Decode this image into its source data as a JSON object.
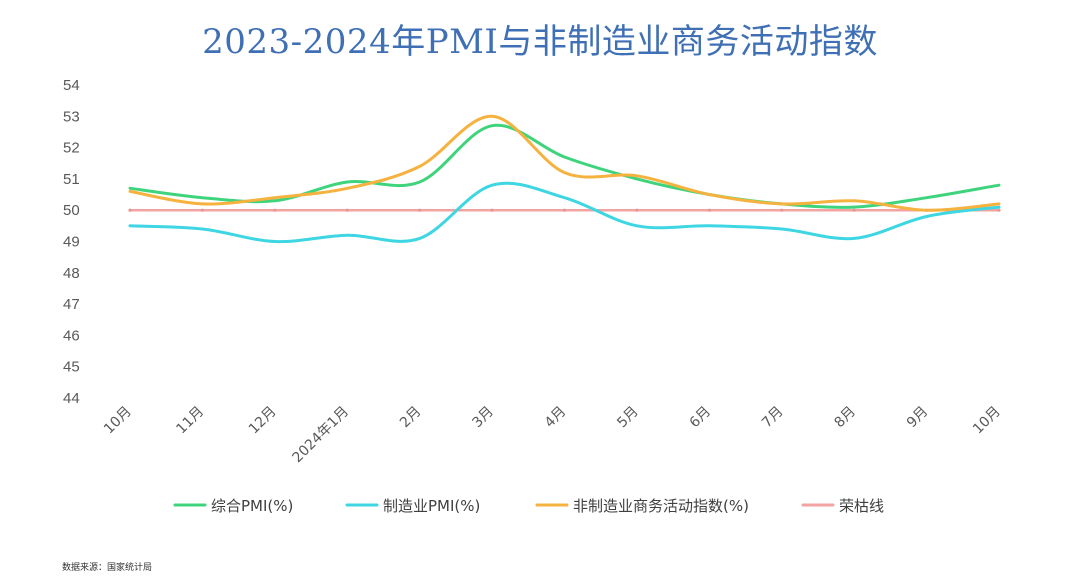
{
  "chart_data": {
    "type": "line",
    "title": "2023-2024年PMI与非制造业商务活动指数",
    "categories": [
      "10月",
      "11月",
      "12月",
      "2024年1月",
      "2月",
      "3月",
      "4月",
      "5月",
      "6月",
      "7月",
      "8月",
      "9月",
      "10月"
    ],
    "ylim": [
      44,
      54
    ],
    "yticks": [
      44,
      45,
      46,
      47,
      48,
      49,
      50,
      51,
      52,
      53,
      54
    ],
    "grid": false,
    "legend_position": "bottom",
    "series": [
      {
        "name": "综合PMI(%)",
        "color": "#3fd47c",
        "values": [
          50.7,
          50.4,
          50.3,
          50.9,
          50.9,
          52.7,
          51.7,
          51.0,
          50.5,
          50.2,
          50.1,
          50.4,
          50.8
        ]
      },
      {
        "name": "制造业PMI(%)",
        "color": "#3ed6e2",
        "values": [
          49.5,
          49.4,
          49.0,
          49.2,
          49.1,
          50.8,
          50.4,
          49.5,
          49.5,
          49.4,
          49.1,
          49.8,
          50.1
        ]
      },
      {
        "name": "非制造业商务活动指数(%)",
        "color": "#f6b23f",
        "values": [
          50.6,
          50.2,
          50.4,
          50.7,
          51.4,
          53.0,
          51.2,
          51.1,
          50.5,
          50.2,
          50.3,
          50.0,
          50.2
        ]
      },
      {
        "name": "荣枯线",
        "color": "#f4a3a3",
        "values": [
          50,
          50,
          50,
          50,
          50,
          50,
          50,
          50,
          50,
          50,
          50,
          50,
          50
        ]
      }
    ]
  },
  "source_note": "数据来源：国家统计局"
}
